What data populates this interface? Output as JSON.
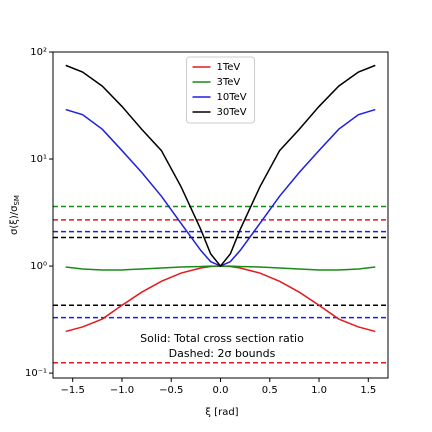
{
  "chart_data": {
    "type": "line",
    "xlabel": "ξ [rad]",
    "ylabel": [
      "σ(ξ)/σ",
      "SM"
    ],
    "annotations": [
      "Solid: Total cross section ratio",
      "Dashed: 2σ bounds"
    ],
    "x": [
      -1.571,
      -1.4,
      -1.2,
      -1.0,
      -0.8,
      -0.6,
      -0.4,
      -0.2,
      -0.1,
      0,
      0.1,
      0.2,
      0.4,
      0.6,
      0.8,
      1.0,
      1.2,
      1.4,
      1.571
    ],
    "series": [
      {
        "name": "1TeV",
        "color": "#e41a1c",
        "values": [
          0.245,
          0.27,
          0.32,
          0.43,
          0.57,
          0.72,
          0.86,
          0.96,
          0.99,
          1,
          0.99,
          0.96,
          0.86,
          0.72,
          0.57,
          0.43,
          0.32,
          0.27,
          0.245
        ],
        "bounds": [
          2.7,
          0.125
        ]
      },
      {
        "name": "3TeV",
        "color": "#1a8a1a",
        "values": [
          0.98,
          0.94,
          0.92,
          0.92,
          0.94,
          0.96,
          0.98,
          0.99,
          1,
          1,
          1,
          0.99,
          0.98,
          0.96,
          0.94,
          0.92,
          0.92,
          0.94,
          0.98
        ],
        "bounds": [
          3.6
        ]
      },
      {
        "name": "10TeV",
        "color": "#1f1fe0",
        "values": [
          29,
          26,
          19,
          12,
          7.5,
          4.5,
          2.5,
          1.4,
          1.1,
          1,
          1.1,
          1.4,
          2.5,
          4.5,
          7.5,
          12,
          19,
          26,
          29
        ],
        "bounds": [
          2.1,
          0.33
        ]
      },
      {
        "name": "30TeV",
        "color": "#000000",
        "values": [
          75,
          65,
          48,
          31,
          19,
          12,
          5.5,
          2.2,
          1.3,
          1,
          1.3,
          2.2,
          5.5,
          12,
          19,
          31,
          48,
          65,
          75
        ],
        "bounds": [
          1.85,
          0.43
        ]
      }
    ],
    "xlim": [
      -1.7,
      1.7
    ],
    "ylim": [
      0.09,
      100
    ],
    "yscale": "log",
    "xticks": [
      {
        "value": -1.5,
        "label": "−1.5"
      },
      {
        "value": -1.0,
        "label": "−1.0"
      },
      {
        "value": -0.5,
        "label": "−0.5"
      },
      {
        "value": 0,
        "label": "0.0"
      },
      {
        "value": 0.5,
        "label": "0.5"
      },
      {
        "value": 1.0,
        "label": "1.0"
      },
      {
        "value": 1.5,
        "label": "1.5"
      }
    ],
    "yticks": [
      {
        "value": 0.1,
        "label": "10⁻¹"
      },
      {
        "value": 1,
        "label": "10⁰"
      },
      {
        "value": 10,
        "label": "10¹"
      },
      {
        "value": 100,
        "label": "10²"
      }
    ],
    "legend": "upper center"
  }
}
